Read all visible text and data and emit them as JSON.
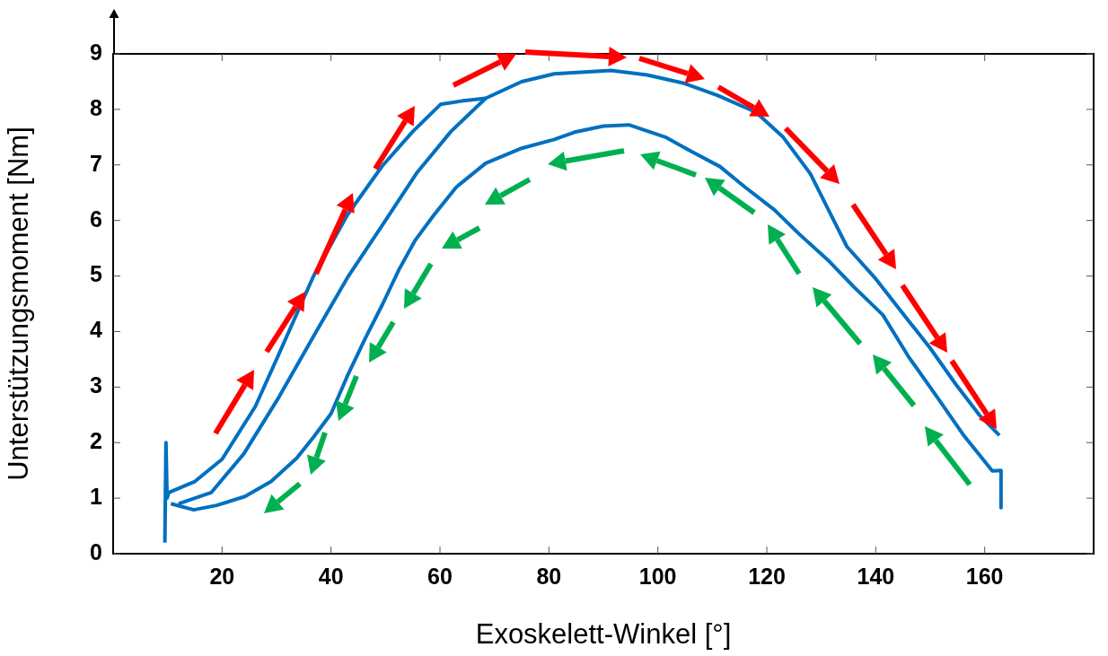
{
  "chart_data": {
    "type": "line",
    "xlabel": "Exoskelett-Winkel [°]",
    "ylabel": "Unterstützungsmoment [Nm]",
    "xlim": [
      0,
      180
    ],
    "ylim": [
      0,
      9
    ],
    "xticks": [
      20,
      40,
      60,
      80,
      100,
      120,
      140,
      160
    ],
    "yticks": [
      0,
      1,
      2,
      3,
      4,
      5,
      6,
      7,
      8,
      9
    ],
    "grid": false,
    "legend": false,
    "marker": "none",
    "line_style": "solid",
    "series": [
      {
        "color": "#0070c0",
        "x": [
          9.5,
          9.7,
          9.9,
          10.2,
          15,
          20,
          26.1,
          30,
          36.8,
          43,
          49.4,
          55,
          60.1,
          64,
          68.4
        ],
        "values": [
          0.2,
          2.0,
          1.0,
          1.1,
          1.3,
          1.7,
          2.65,
          3.5,
          5.0,
          6.1,
          6.98,
          7.6,
          8.09,
          8.15,
          8.2
        ]
      },
      {
        "color": "#0070c0",
        "x": [
          12,
          18,
          24,
          30.5,
          37,
          43.2,
          50,
          55.7,
          62,
          68.4,
          75,
          81,
          91.4,
          98,
          104.8,
          111,
          118,
          123,
          128,
          134.7,
          140,
          144.7,
          150,
          154.7,
          159,
          162.7
        ],
        "values": [
          0.9,
          1.1,
          1.8,
          2.83,
          3.95,
          5.0,
          6.0,
          6.85,
          7.6,
          8.2,
          8.5,
          8.64,
          8.7,
          8.62,
          8.47,
          8.25,
          7.95,
          7.5,
          6.84,
          5.53,
          4.95,
          4.36,
          3.7,
          3.05,
          2.5,
          2.13
        ]
      },
      {
        "color": "#0070c0",
        "x": [
          10.6,
          14.8,
          19,
          24.2,
          29,
          33.7,
          36.8,
          40,
          43,
          46.3,
          49.5,
          52.5,
          55.5,
          58.9,
          63,
          68.4,
          75,
          81,
          84.7,
          90,
          94.7,
          101.4,
          106,
          111.4,
          116,
          121.4,
          126,
          131.4,
          136,
          141.3,
          146,
          151.4,
          156,
          161.4,
          163,
          163
        ],
        "values": [
          0.9,
          0.79,
          0.87,
          1.03,
          1.3,
          1.72,
          2.1,
          2.52,
          3.2,
          3.88,
          4.5,
          5.12,
          5.65,
          6.1,
          6.6,
          7.03,
          7.3,
          7.46,
          7.59,
          7.7,
          7.72,
          7.5,
          7.25,
          6.97,
          6.6,
          6.19,
          5.75,
          5.27,
          4.8,
          4.3,
          3.55,
          2.8,
          2.15,
          1.49,
          1.5,
          0.83
        ]
      }
    ]
  }
}
